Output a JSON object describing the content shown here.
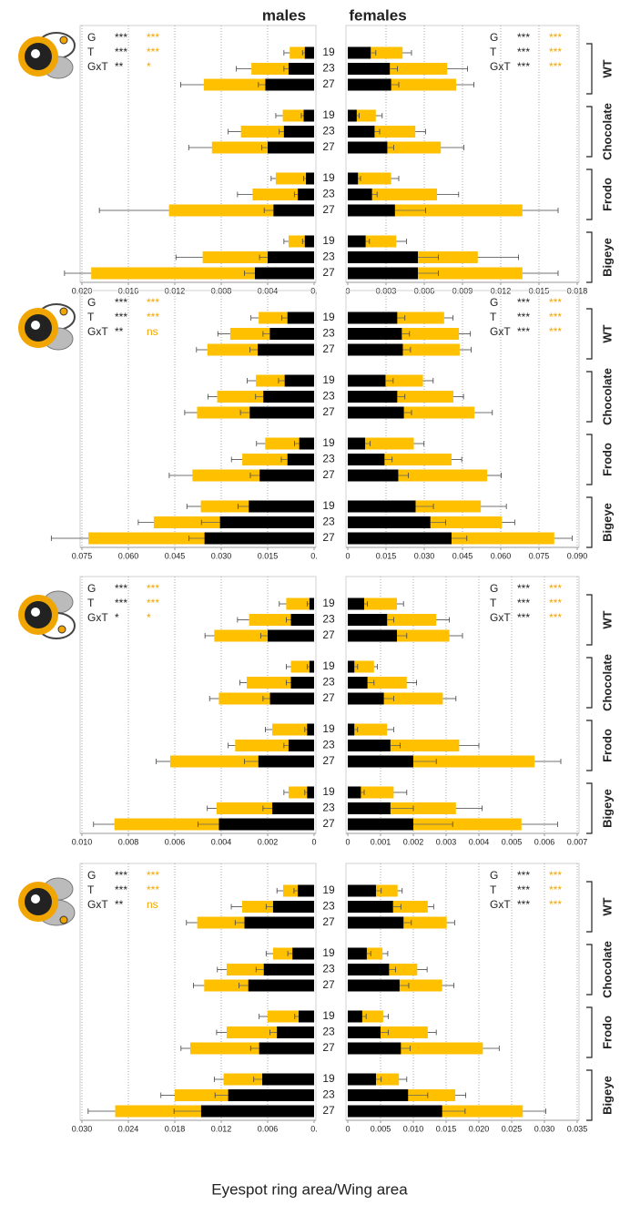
{
  "xlabel": "Eyespot ring area/Wing area",
  "chart_data": [
    {
      "type": "bar",
      "orientation": "horizontal",
      "title": "males",
      "categories": [
        "19",
        "23",
        "27",
        "19",
        "23",
        "27",
        "19",
        "23",
        "27",
        "19",
        "23",
        "27"
      ],
      "xlim": [
        0.02,
        0
      ],
      "xticks": [
        {
          "value": 0.02,
          "label": "0.020"
        },
        0.016,
        0.012,
        0.008,
        0.004,
        {
          "value": 0,
          "label": "0."
        }
      ],
      "grid": true,
      "stats": {
        "labels": [
          "G",
          "T",
          "GxT"
        ],
        "black": [
          "***",
          "***",
          "**"
        ],
        "yellow": [
          "***",
          "***",
          "*"
        ]
      },
      "series": [
        {
          "color": "#ffc000",
          "values": [
            0.0021,
            0.0054,
            0.0095,
            0.0027,
            0.0063,
            0.0088,
            0.0033,
            0.0053,
            0.0125,
            0.0022,
            0.0096,
            0.0192
          ],
          "errors": [
            0.0005,
            0.0013,
            0.002,
            0.0006,
            0.0011,
            0.002,
            0.0004,
            0.0013,
            0.006,
            0.0004,
            0.0023,
            0.0023
          ]
        },
        {
          "color": "#000000",
          "values": [
            0.0008,
            0.0022,
            0.0042,
            0.0009,
            0.0026,
            0.004,
            0.0007,
            0.0014,
            0.0035,
            0.0008,
            0.004,
            0.0051
          ],
          "errors": [
            0.0002,
            0.0004,
            0.0006,
            0.0002,
            0.0004,
            0.0005,
            0.0002,
            0.0003,
            0.0008,
            0.0002,
            0.0007,
            0.0009
          ]
        }
      ]
    },
    {
      "type": "bar",
      "orientation": "horizontal",
      "title": "females",
      "groups": [
        "WT",
        "Chocolate",
        "Frodo",
        "Bigeye"
      ],
      "xlim": [
        0,
        0.018
      ],
      "xticks": [
        0,
        0.003,
        0.006,
        0.009,
        0.012,
        0.015,
        0.018
      ],
      "grid": true,
      "stats": {
        "labels": [
          "G",
          "T",
          "GxT"
        ],
        "black": [
          "***",
          "***",
          "***"
        ],
        "yellow": [
          "***",
          "***",
          "***"
        ]
      },
      "series": [
        {
          "color": "#ffc000",
          "values": [
            0.0043,
            0.0078,
            0.0085,
            0.0022,
            0.0053,
            0.0073,
            0.0034,
            0.007,
            0.0137,
            0.0038,
            0.0102,
            0.0137
          ],
          "errors": [
            0.0007,
            0.0016,
            0.0014,
            0.0005,
            0.0008,
            0.0018,
            0.0006,
            0.0017,
            0.0028,
            0.0008,
            0.0032,
            0.0028
          ]
        },
        {
          "color": "#000000",
          "values": [
            0.0018,
            0.0033,
            0.0034,
            0.0007,
            0.0021,
            0.0031,
            0.0008,
            0.0019,
            0.0037,
            0.0014,
            0.0055,
            0.0055
          ],
          "errors": [
            0.0004,
            0.0006,
            0.0006,
            0.0002,
            0.0004,
            0.0005,
            0.0002,
            0.0004,
            0.0024,
            0.0003,
            0.0016,
            0.0016
          ]
        }
      ]
    },
    {
      "type": "bar",
      "orientation": "horizontal",
      "categories": [
        "19",
        "23",
        "27",
        "19",
        "23",
        "27",
        "19",
        "23",
        "27",
        "19",
        "23",
        "27"
      ],
      "xlim": [
        0.075,
        0
      ],
      "xticks": [
        0.075,
        {
          "value": 0.06,
          "label": "0.060"
        },
        0.045,
        {
          "value": 0.03,
          "label": "0.030"
        },
        0.015,
        {
          "value": 0,
          "label": "0."
        }
      ],
      "grid": true,
      "stats": {
        "labels": [
          "G",
          "T",
          "GxT"
        ],
        "black": [
          "***",
          "***",
          "**"
        ],
        "yellow": [
          "***",
          "***",
          "ns"
        ]
      },
      "series": [
        {
          "color": "#ffc000",
          "values": [
            0.0179,
            0.0271,
            0.0345,
            0.0188,
            0.0313,
            0.0378,
            0.0158,
            0.0232,
            0.0393,
            0.0366,
            0.0518,
            0.0729
          ],
          "errors": [
            0.0025,
            0.004,
            0.0035,
            0.0028,
            0.003,
            0.004,
            0.0028,
            0.0035,
            0.0075,
            0.0045,
            0.005,
            0.012
          ]
        },
        {
          "color": "#000000",
          "values": [
            0.0086,
            0.0143,
            0.0182,
            0.0095,
            0.0164,
            0.0208,
            0.0048,
            0.0086,
            0.0176,
            0.0211,
            0.0304,
            0.0354
          ],
          "errors": [
            0.0018,
            0.0022,
            0.0025,
            0.002,
            0.0025,
            0.003,
            0.0015,
            0.002,
            0.003,
            0.0035,
            0.006,
            0.005
          ]
        }
      ]
    },
    {
      "type": "bar",
      "orientation": "horizontal",
      "groups": [
        "WT",
        "Chocolate",
        "Frodo",
        "Bigeye"
      ],
      "xlim": [
        0,
        0.09
      ],
      "xticks": [
        0,
        0.015,
        {
          "value": 0.03,
          "label": "0.030"
        },
        0.045,
        {
          "value": 0.06,
          "label": "0.060"
        },
        0.075,
        {
          "value": 0.09,
          "label": "0.090"
        }
      ],
      "grid": true,
      "stats": {
        "labels": [
          "G",
          "T",
          "GxT"
        ],
        "black": [
          "***",
          "***",
          "***"
        ],
        "yellow": [
          "***",
          "***",
          "***"
        ]
      },
      "series": [
        {
          "color": "#ffc000",
          "values": [
            0.0378,
            0.0436,
            0.0439,
            0.0295,
            0.0414,
            0.0497,
            0.0259,
            0.0407,
            0.0547,
            0.0522,
            0.0605,
            0.081
          ],
          "errors": [
            0.0035,
            0.0045,
            0.0045,
            0.004,
            0.004,
            0.007,
            0.004,
            0.004,
            0.0055,
            0.01,
            0.005,
            0.007
          ]
        },
        {
          "color": "#000000",
          "values": [
            0.0194,
            0.0212,
            0.0216,
            0.0148,
            0.0194,
            0.022,
            0.0068,
            0.0144,
            0.0198,
            0.0266,
            0.0324,
            0.0407
          ],
          "errors": [
            0.003,
            0.003,
            0.003,
            0.003,
            0.003,
            0.003,
            0.002,
            0.003,
            0.004,
            0.007,
            0.006,
            0.006
          ]
        }
      ]
    },
    {
      "type": "bar",
      "orientation": "horizontal",
      "categories": [
        "19",
        "23",
        "27",
        "19",
        "23",
        "27",
        "19",
        "23",
        "27",
        "19",
        "23",
        "27"
      ],
      "xlim": [
        0.01,
        0
      ],
      "xticks": [
        {
          "value": 0.01,
          "label": "0.010"
        },
        0.008,
        0.006,
        0.004,
        0.002,
        0
      ],
      "grid": true,
      "stats": {
        "labels": [
          "G",
          "T",
          "GxT"
        ],
        "black": [
          "***",
          "***",
          "*"
        ],
        "yellow": [
          "***",
          "***",
          "*"
        ]
      },
      "series": [
        {
          "color": "#ffc000",
          "values": [
            0.0012,
            0.0028,
            0.0043,
            0.001,
            0.0029,
            0.0041,
            0.0018,
            0.0034,
            0.0062,
            0.0011,
            0.0042,
            0.0086
          ],
          "errors": [
            0.0003,
            0.0005,
            0.0004,
            0.0002,
            0.0003,
            0.0004,
            0.0003,
            0.0003,
            0.0006,
            0.0002,
            0.0004,
            0.0009
          ]
        },
        {
          "color": "#000000",
          "values": [
            0.0002,
            0.001,
            0.002,
            0.0002,
            0.001,
            0.0019,
            0.0003,
            0.0011,
            0.0024,
            0.0003,
            0.0018,
            0.0041
          ],
          "errors": [
            0.0001,
            0.0002,
            0.0003,
            0.0001,
            0.0002,
            0.0003,
            0.0001,
            0.0002,
            0.0006,
            0.0001,
            0.0004,
            0.0009
          ]
        }
      ]
    },
    {
      "type": "bar",
      "orientation": "horizontal",
      "groups": [
        "WT",
        "Chocolate",
        "Frodo",
        "Bigeye"
      ],
      "xlim": [
        0,
        0.007
      ],
      "xticks": [
        0,
        0.001,
        0.002,
        0.003,
        0.004,
        0.005,
        0.006,
        0.007
      ],
      "grid": true,
      "stats": {
        "labels": [
          "G",
          "T",
          "GxT"
        ],
        "black": [
          "***",
          "***",
          "***"
        ],
        "yellow": [
          "***",
          "***",
          "***"
        ]
      },
      "series": [
        {
          "color": "#ffc000",
          "values": [
            0.0015,
            0.0027,
            0.0031,
            0.0008,
            0.0018,
            0.0029,
            0.0012,
            0.0034,
            0.0057,
            0.0014,
            0.0033,
            0.0053
          ],
          "errors": [
            0.0002,
            0.0004,
            0.0004,
            0.0001,
            0.0003,
            0.0004,
            0.0002,
            0.0006,
            0.0008,
            0.0004,
            0.0008,
            0.0011
          ]
        },
        {
          "color": "#000000",
          "values": [
            0.0005,
            0.0012,
            0.0015,
            0.0002,
            0.0006,
            0.0011,
            0.0002,
            0.0013,
            0.002,
            0.0004,
            0.0013,
            0.002
          ],
          "errors": [
            0.0001,
            0.0002,
            0.0003,
            0.0001,
            0.0002,
            0.0003,
            0.0001,
            0.0003,
            0.0007,
            0.0001,
            0.0007,
            0.0012
          ]
        }
      ]
    },
    {
      "type": "bar",
      "orientation": "horizontal",
      "categories": [
        "19",
        "23",
        "27",
        "19",
        "23",
        "27",
        "19",
        "23",
        "27",
        "19",
        "23",
        "27"
      ],
      "xlim": [
        0.03,
        0
      ],
      "xticks": [
        {
          "value": 0.03,
          "label": "0.030"
        },
        0.024,
        0.018,
        0.012,
        0.006,
        {
          "value": 0,
          "label": "0."
        }
      ],
      "grid": true,
      "stats": {
        "labels": [
          "G",
          "T",
          "GxT"
        ],
        "black": [
          "***",
          "***",
          "**"
        ],
        "yellow": [
          "***",
          "***",
          "ns"
        ]
      },
      "series": [
        {
          "color": "#ffc000",
          "values": [
            0.004,
            0.0093,
            0.0151,
            0.0053,
            0.0113,
            0.0142,
            0.006,
            0.0113,
            0.016,
            0.0117,
            0.018,
            0.0257
          ],
          "errors": [
            0.0008,
            0.0014,
            0.0014,
            0.0009,
            0.0012,
            0.0014,
            0.0011,
            0.0013,
            0.0012,
            0.0012,
            0.0018,
            0.0035
          ]
        },
        {
          "color": "#000000",
          "values": [
            0.0021,
            0.0053,
            0.009,
            0.0028,
            0.0065,
            0.0085,
            0.002,
            0.0048,
            0.0071,
            0.0067,
            0.0111,
            0.0146
          ],
          "errors": [
            0.0005,
            0.0009,
            0.0012,
            0.0006,
            0.001,
            0.0012,
            0.0005,
            0.0009,
            0.0011,
            0.0011,
            0.0017,
            0.0035
          ]
        }
      ]
    },
    {
      "type": "bar",
      "orientation": "horizontal",
      "groups": [
        "WT",
        "Chocolate",
        "Frodo",
        "Bigeye"
      ],
      "xlim": [
        0,
        0.035
      ],
      "xticks": [
        0,
        0.005,
        {
          "value": 0.01,
          "label": "0.010"
        },
        0.015,
        {
          "value": 0.02,
          "label": "0.020"
        },
        0.025,
        {
          "value": 0.03,
          "label": "0.030"
        },
        0.035
      ],
      "grid": true,
      "stats": {
        "labels": [
          "G",
          "T",
          "GxT"
        ],
        "black": [
          "***",
          "***",
          "***"
        ],
        "yellow": [
          "***",
          "***",
          "***"
        ]
      },
      "series": [
        {
          "color": "#ffc000",
          "values": [
            0.0076,
            0.0122,
            0.0151,
            0.0053,
            0.0106,
            0.0144,
            0.0054,
            0.0122,
            0.0206,
            0.0078,
            0.0164,
            0.0267
          ],
          "errors": [
            0.0007,
            0.0009,
            0.0012,
            0.0008,
            0.0015,
            0.0018,
            0.0008,
            0.0013,
            0.0025,
            0.0012,
            0.0016,
            0.0035
          ]
        },
        {
          "color": "#000000",
          "values": [
            0.0043,
            0.0069,
            0.0085,
            0.0029,
            0.0063,
            0.0079,
            0.0022,
            0.005,
            0.0081,
            0.0043,
            0.0092,
            0.0144
          ],
          "errors": [
            0.0008,
            0.0012,
            0.0012,
            0.0006,
            0.001,
            0.0014,
            0.0006,
            0.0012,
            0.0014,
            0.0008,
            0.003,
            0.0035
          ]
        }
      ]
    }
  ]
}
